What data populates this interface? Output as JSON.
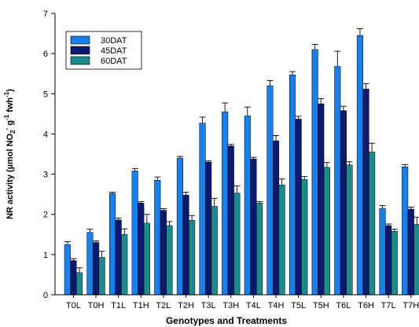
{
  "chart_data": {
    "type": "bar",
    "xlabel": "Genotypes and Treatments",
    "ylabel": {
      "prefix": "NR activity (µmol NO",
      "sub1": "2",
      "sup1": "-",
      "mid": " g",
      "sup2": "-1",
      "mid2": " fwh",
      "sup3": "-1",
      "suffix": ")"
    },
    "ylim": [
      0,
      7
    ],
    "yticks": [
      0,
      1,
      2,
      3,
      4,
      5,
      6,
      7
    ],
    "grid": false,
    "legend_position": "top-left",
    "categories": [
      "T0L",
      "T0H",
      "T1L",
      "T1H",
      "T2L",
      "T2H",
      "T3L",
      "T3H",
      "T4L",
      "T4H",
      "T5L",
      "T5H",
      "T6L",
      "T6H",
      "T7L",
      "T7H"
    ],
    "series": [
      {
        "name": "30DAT",
        "color": "#1a7fe8",
        "values": [
          1.25,
          1.55,
          2.52,
          3.08,
          2.85,
          3.4,
          4.27,
          4.55,
          4.45,
          5.2,
          5.47,
          6.1,
          5.68,
          6.45,
          2.15,
          3.18
        ],
        "errors": [
          0.07,
          0.08,
          0.03,
          0.06,
          0.08,
          0.04,
          0.15,
          0.22,
          0.22,
          0.13,
          0.08,
          0.13,
          0.38,
          0.17,
          0.07,
          0.06
        ]
      },
      {
        "name": "45DAT",
        "color": "#0b1a6e",
        "values": [
          0.85,
          1.3,
          1.86,
          2.28,
          2.1,
          2.48,
          3.3,
          3.7,
          3.38,
          3.83,
          4.37,
          4.75,
          4.58,
          5.12,
          1.72,
          2.13
        ],
        "errors": [
          0.05,
          0.04,
          0.05,
          0.04,
          0.04,
          0.07,
          0.03,
          0.04,
          0.04,
          0.13,
          0.07,
          0.13,
          0.11,
          0.13,
          0.04,
          0.05
        ]
      },
      {
        "name": "60DAT",
        "color": "#1e8a8a",
        "values": [
          0.55,
          0.93,
          1.5,
          1.78,
          1.72,
          1.85,
          2.2,
          2.53,
          2.28,
          2.73,
          2.87,
          3.17,
          3.23,
          3.55,
          1.58,
          1.75
        ],
        "errors": [
          0.12,
          0.15,
          0.14,
          0.22,
          0.1,
          0.12,
          0.2,
          0.18,
          0.04,
          0.15,
          0.07,
          0.12,
          0.08,
          0.22,
          0.05,
          0.18
        ]
      }
    ]
  }
}
